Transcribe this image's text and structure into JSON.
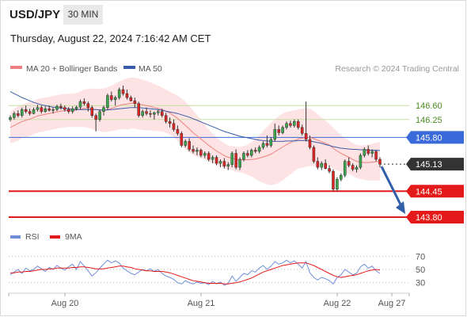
{
  "header": {
    "symbol": "USD/JPY",
    "timeframe": "30 MIN",
    "datetime": "Thursday, August 22, 2024 7:16:42 AM CET"
  },
  "legend": {
    "ma20_label": "MA 20 + Bollinger Bands",
    "ma50_label": "MA 50",
    "credit": "Research © 2024 Trading Central"
  },
  "colors": {
    "bull": "#3aa64b",
    "bear": "#e02323",
    "ma20": "#f08080",
    "ma50": "#3a5ba8",
    "band": "#fde3e3",
    "resistance": "#c5e0a5",
    "pivot": "#3a6ad9",
    "support": "#e41a1a",
    "current": "#333333",
    "arrow": "#2f5fa8",
    "rsi": "#6f8fd8",
    "rsi_ma": "#e41a1a"
  },
  "chart_data": {
    "type": "candlestick",
    "price_axis": {
      "ylim": [
        143.6,
        147.3
      ],
      "levels": [
        {
          "label": "146.60",
          "value": 146.6,
          "kind": "resistance"
        },
        {
          "label": "146.25",
          "value": 146.25,
          "kind": "resistance"
        },
        {
          "label": "145.80",
          "value": 145.8,
          "kind": "pivot"
        },
        {
          "label": "145.13",
          "value": 145.13,
          "kind": "current"
        },
        {
          "label": "144.45",
          "value": 144.45,
          "kind": "support"
        },
        {
          "label": "143.80",
          "value": 143.8,
          "kind": "support"
        }
      ]
    },
    "x_labels": [
      "Aug 20",
      "Aug 21",
      "Aug 22",
      "Aug 27"
    ],
    "candles": [
      [
        146.25,
        146.35,
        146.2,
        146.3
      ],
      [
        146.3,
        146.45,
        146.25,
        146.4
      ],
      [
        146.4,
        146.48,
        146.3,
        146.35
      ],
      [
        146.35,
        146.55,
        146.3,
        146.5
      ],
      [
        146.5,
        146.6,
        146.4,
        146.45
      ],
      [
        146.45,
        146.52,
        146.35,
        146.4
      ],
      [
        146.4,
        146.55,
        146.38,
        146.5
      ],
      [
        146.5,
        146.62,
        146.45,
        146.55
      ],
      [
        146.55,
        146.6,
        146.4,
        146.45
      ],
      [
        146.45,
        146.58,
        146.42,
        146.52
      ],
      [
        146.52,
        146.6,
        146.45,
        146.48
      ],
      [
        146.48,
        146.55,
        146.4,
        146.5
      ],
      [
        146.5,
        146.62,
        146.46,
        146.58
      ],
      [
        146.58,
        146.65,
        146.5,
        146.55
      ],
      [
        146.55,
        146.6,
        146.45,
        146.5
      ],
      [
        146.5,
        146.56,
        146.4,
        146.45
      ],
      [
        146.45,
        146.58,
        146.4,
        146.52
      ],
      [
        146.52,
        146.6,
        146.48,
        146.56
      ],
      [
        146.56,
        146.75,
        146.5,
        146.7
      ],
      [
        146.7,
        146.78,
        146.6,
        146.65
      ],
      [
        146.65,
        146.7,
        146.45,
        146.55
      ],
      [
        146.55,
        146.6,
        146.3,
        146.35
      ],
      [
        146.35,
        146.4,
        145.95,
        146.25
      ],
      [
        146.25,
        146.5,
        146.2,
        146.45
      ],
      [
        146.45,
        146.6,
        146.35,
        146.55
      ],
      [
        146.55,
        146.9,
        146.5,
        146.85
      ],
      [
        146.85,
        146.95,
        146.7,
        146.75
      ],
      [
        146.75,
        146.85,
        146.6,
        146.8
      ],
      [
        146.8,
        147.05,
        146.75,
        147.0
      ],
      [
        147.0,
        147.1,
        146.85,
        146.9
      ],
      [
        146.9,
        147.0,
        146.75,
        146.8
      ],
      [
        146.8,
        146.85,
        146.7,
        146.72
      ],
      [
        146.72,
        146.8,
        146.55,
        146.65
      ],
      [
        146.65,
        146.7,
        146.3,
        146.35
      ],
      [
        146.35,
        146.5,
        146.3,
        146.45
      ],
      [
        146.45,
        146.55,
        146.35,
        146.4
      ],
      [
        146.4,
        146.48,
        146.3,
        146.38
      ],
      [
        146.38,
        146.45,
        146.25,
        146.42
      ],
      [
        146.42,
        146.5,
        146.35,
        146.45
      ],
      [
        146.45,
        146.52,
        146.3,
        146.35
      ],
      [
        146.35,
        146.42,
        146.15,
        146.2
      ],
      [
        146.2,
        146.3,
        146.05,
        146.15
      ],
      [
        146.15,
        146.25,
        145.95,
        146.0
      ],
      [
        146.0,
        146.1,
        145.85,
        145.9
      ],
      [
        145.9,
        145.95,
        145.55,
        145.6
      ],
      [
        145.6,
        145.75,
        145.55,
        145.7
      ],
      [
        145.7,
        145.78,
        145.45,
        145.5
      ],
      [
        145.5,
        145.6,
        145.4,
        145.45
      ],
      [
        145.45,
        145.55,
        145.35,
        145.48
      ],
      [
        145.48,
        145.52,
        145.3,
        145.35
      ],
      [
        145.35,
        145.45,
        145.28,
        145.4
      ],
      [
        145.4,
        145.45,
        145.2,
        145.25
      ],
      [
        145.25,
        145.35,
        145.15,
        145.3
      ],
      [
        145.3,
        145.35,
        145.1,
        145.15
      ],
      [
        145.15,
        145.25,
        145.05,
        145.2
      ],
      [
        145.2,
        145.28,
        145.02,
        145.08
      ],
      [
        145.08,
        145.18,
        144.98,
        145.12
      ],
      [
        145.12,
        145.45,
        145.05,
        145.4
      ],
      [
        145.4,
        145.5,
        145.0,
        145.05
      ],
      [
        145.05,
        145.3,
        144.98,
        145.25
      ],
      [
        145.25,
        145.45,
        145.2,
        145.4
      ],
      [
        145.4,
        145.48,
        145.3,
        145.35
      ],
      [
        145.35,
        145.52,
        145.3,
        145.48
      ],
      [
        145.48,
        145.55,
        145.4,
        145.45
      ],
      [
        145.45,
        145.6,
        145.4,
        145.55
      ],
      [
        145.55,
        145.7,
        145.5,
        145.65
      ],
      [
        145.65,
        145.85,
        145.55,
        145.6
      ],
      [
        145.6,
        145.8,
        145.55,
        145.75
      ],
      [
        145.75,
        146.15,
        145.7,
        146.0
      ],
      [
        146.0,
        146.1,
        145.85,
        145.92
      ],
      [
        145.92,
        146.1,
        145.88,
        146.05
      ],
      [
        146.05,
        146.2,
        146.0,
        146.15
      ],
      [
        146.15,
        146.22,
        146.05,
        146.1
      ],
      [
        146.1,
        146.25,
        146.05,
        146.2
      ],
      [
        146.2,
        146.25,
        146.0,
        146.05
      ],
      [
        146.05,
        146.12,
        145.85,
        145.9
      ],
      [
        145.9,
        146.7,
        145.7,
        145.75
      ],
      [
        145.75,
        145.85,
        145.5,
        145.55
      ],
      [
        145.55,
        145.6,
        145.15,
        145.2
      ],
      [
        145.2,
        145.3,
        145.0,
        145.05
      ],
      [
        145.05,
        145.2,
        144.98,
        145.15
      ],
      [
        145.15,
        145.25,
        145.0,
        145.02
      ],
      [
        145.02,
        145.1,
        144.9,
        144.95
      ],
      [
        144.95,
        145.0,
        144.45,
        144.5
      ],
      [
        144.5,
        144.8,
        144.45,
        144.75
      ],
      [
        144.75,
        144.9,
        144.7,
        144.85
      ],
      [
        144.85,
        145.25,
        144.8,
        145.2
      ],
      [
        145.2,
        145.3,
        145.05,
        145.1
      ],
      [
        145.1,
        145.15,
        144.95,
        145.0
      ],
      [
        145.0,
        145.1,
        144.92,
        145.05
      ],
      [
        145.05,
        145.4,
        145.0,
        145.35
      ],
      [
        145.35,
        145.55,
        145.3,
        145.5
      ],
      [
        145.5,
        145.6,
        145.35,
        145.4
      ],
      [
        145.4,
        145.5,
        145.3,
        145.45
      ],
      [
        145.45,
        145.48,
        145.2,
        145.25
      ],
      [
        145.25,
        145.3,
        145.05,
        145.13
      ]
    ],
    "ma20": [
      146.05,
      146.1,
      146.15,
      146.2,
      146.23,
      146.26,
      146.3,
      146.34,
      146.36,
      146.38,
      146.4,
      146.42,
      146.44,
      146.46,
      146.47,
      146.48,
      146.48,
      146.49,
      146.51,
      146.53,
      146.53,
      146.52,
      146.5,
      146.49,
      146.48,
      146.5,
      146.53,
      146.56,
      146.6,
      146.63,
      146.64,
      146.66,
      146.66,
      146.64,
      146.62,
      146.6,
      146.58,
      146.55,
      146.53,
      146.5,
      146.46,
      146.41,
      146.35,
      146.28,
      146.19,
      146.1,
      146.01,
      145.92,
      145.84,
      145.76,
      145.68,
      145.6,
      145.53,
      145.46,
      145.4,
      145.34,
      145.3,
      145.28,
      145.25,
      145.24,
      145.24,
      145.24,
      145.25,
      145.26,
      145.28,
      145.31,
      145.34,
      145.38,
      145.44,
      145.5,
      145.56,
      145.62,
      145.67,
      145.72,
      145.76,
      145.78,
      145.8,
      145.8,
      145.77,
      145.73,
      145.69,
      145.65,
      145.61,
      145.53,
      145.46,
      145.4,
      145.35,
      145.3,
      145.25,
      145.2,
      145.18,
      145.17,
      145.17,
      145.18,
      145.19,
      145.2
    ],
    "ma20_upper": [
      146.45,
      146.52,
      146.58,
      146.62,
      146.66,
      146.69,
      146.72,
      146.76,
      146.78,
      146.8,
      146.82,
      146.84,
      146.86,
      146.88,
      146.89,
      146.9,
      146.9,
      146.92,
      146.96,
      147.0,
      147.02,
      147.03,
      147.02,
      147.02,
      147.03,
      147.06,
      147.1,
      147.15,
      147.2,
      147.25,
      147.28,
      147.3,
      147.3,
      147.28,
      147.25,
      147.22,
      147.18,
      147.14,
      147.1,
      147.05,
      147.0,
      146.95,
      146.9,
      146.85,
      146.78,
      146.7,
      146.6,
      146.48,
      146.36,
      146.24,
      146.12,
      146.0,
      145.9,
      145.8,
      145.72,
      145.65,
      145.6,
      145.58,
      145.56,
      145.56,
      145.58,
      145.62,
      145.68,
      145.76,
      145.86,
      145.96,
      146.06,
      146.16,
      146.26,
      146.34,
      146.4,
      146.44,
      146.46,
      146.48,
      146.5,
      146.52,
      146.54,
      146.52,
      146.46,
      146.38,
      146.3,
      146.22,
      146.14,
      146.04,
      145.95,
      145.86,
      145.78,
      145.72,
      145.66,
      145.62,
      145.6,
      145.6,
      145.62,
      145.64,
      145.66,
      145.68
    ],
    "ma20_lower": [
      145.65,
      145.68,
      145.72,
      145.78,
      145.8,
      145.83,
      145.88,
      145.92,
      145.94,
      145.96,
      145.98,
      146.0,
      146.02,
      146.04,
      146.05,
      146.06,
      146.06,
      146.06,
      146.06,
      146.06,
      146.04,
      146.01,
      145.98,
      145.96,
      145.93,
      145.94,
      145.96,
      145.97,
      146.0,
      146.01,
      146.0,
      146.02,
      146.02,
      146.0,
      145.99,
      145.98,
      145.98,
      145.96,
      145.96,
      145.95,
      145.92,
      145.87,
      145.8,
      145.71,
      145.6,
      145.5,
      145.42,
      145.36,
      145.32,
      145.28,
      145.24,
      145.2,
      145.16,
      145.12,
      145.08,
      145.03,
      145.0,
      144.98,
      144.94,
      144.92,
      144.9,
      144.86,
      144.82,
      144.76,
      144.7,
      144.66,
      144.62,
      144.6,
      144.62,
      144.66,
      144.72,
      144.8,
      144.88,
      144.96,
      145.02,
      145.04,
      145.06,
      145.08,
      145.08,
      145.08,
      145.08,
      145.08,
      145.08,
      145.02,
      144.97,
      144.94,
      144.92,
      144.88,
      144.84,
      144.78,
      144.76,
      144.74,
      144.72,
      144.72,
      144.72,
      144.72
    ],
    "ma50": [
      146.95,
      146.9,
      146.85,
      146.8,
      146.76,
      146.72,
      146.68,
      146.65,
      146.62,
      146.6,
      146.58,
      146.56,
      146.55,
      146.54,
      146.53,
      146.52,
      146.51,
      146.5,
      146.5,
      146.5,
      146.5,
      146.5,
      146.5,
      146.49,
      146.49,
      146.49,
      146.5,
      146.51,
      146.52,
      146.53,
      146.54,
      146.55,
      146.55,
      146.55,
      146.54,
      146.53,
      146.52,
      146.51,
      146.5,
      146.48,
      146.46,
      146.44,
      146.42,
      146.4,
      146.37,
      146.34,
      146.31,
      146.27,
      146.23,
      146.19,
      146.15,
      146.11,
      146.07,
      146.03,
      145.99,
      145.95,
      145.92,
      145.89,
      145.86,
      145.83,
      145.81,
      145.79,
      145.77,
      145.75,
      145.73,
      145.72,
      145.71,
      145.7,
      145.7,
      145.7,
      145.7,
      145.71,
      145.71,
      145.71,
      145.72,
      145.72,
      145.72,
      145.71,
      145.69,
      145.67,
      145.65,
      145.62,
      145.6,
      145.57,
      145.55,
      145.53,
      145.52,
      145.51,
      145.5,
      145.5,
      145.49,
      145.49,
      145.48,
      145.48,
      145.48,
      145.47
    ],
    "forecast_arrow": {
      "from": 145.13,
      "to": 143.8
    },
    "rsi": {
      "ticks": [
        "70",
        "50",
        "30"
      ],
      "legend_rsi": "RSI",
      "legend_ma": "9MA",
      "ylim": [
        20,
        80
      ],
      "values": [
        42,
        46,
        50,
        44,
        52,
        48,
        50,
        55,
        51,
        47,
        53,
        50,
        56,
        52,
        49,
        54,
        58,
        50,
        62,
        55,
        48,
        40,
        45,
        52,
        58,
        64,
        60,
        63,
        60,
        52,
        48,
        44,
        42,
        46,
        50,
        48,
        51,
        47,
        50,
        44,
        40,
        38,
        35,
        30,
        28,
        33,
        30,
        28,
        31,
        29,
        30,
        27,
        32,
        28,
        31,
        26,
        29,
        40,
        32,
        38,
        44,
        42,
        48,
        46,
        52,
        56,
        50,
        55,
        62,
        58,
        60,
        64,
        60,
        63,
        58,
        52,
        62,
        45,
        38,
        34,
        38,
        36,
        33,
        28,
        38,
        42,
        50,
        46,
        42,
        44,
        54,
        58,
        52,
        55,
        48,
        44
      ],
      "ma": [
        45,
        45,
        46,
        46,
        47,
        47,
        48,
        49,
        50,
        50,
        51,
        51,
        52,
        52,
        52,
        52,
        53,
        53,
        54,
        54,
        53,
        52,
        51,
        51,
        51,
        52,
        53,
        54,
        55,
        55,
        54,
        53,
        51,
        50,
        49,
        48,
        48,
        47,
        47,
        47,
        46,
        45,
        43,
        41,
        39,
        37,
        35,
        33,
        32,
        31,
        30,
        29,
        29,
        29,
        29,
        28,
        28,
        29,
        30,
        31,
        33,
        35,
        37,
        40,
        43,
        46,
        48,
        50,
        52,
        54,
        56,
        57,
        58,
        59,
        60,
        60,
        60,
        58,
        56,
        53,
        50,
        47,
        44,
        41,
        39,
        38,
        39,
        40,
        41,
        42,
        44,
        46,
        48,
        49,
        50,
        49
      ]
    }
  }
}
